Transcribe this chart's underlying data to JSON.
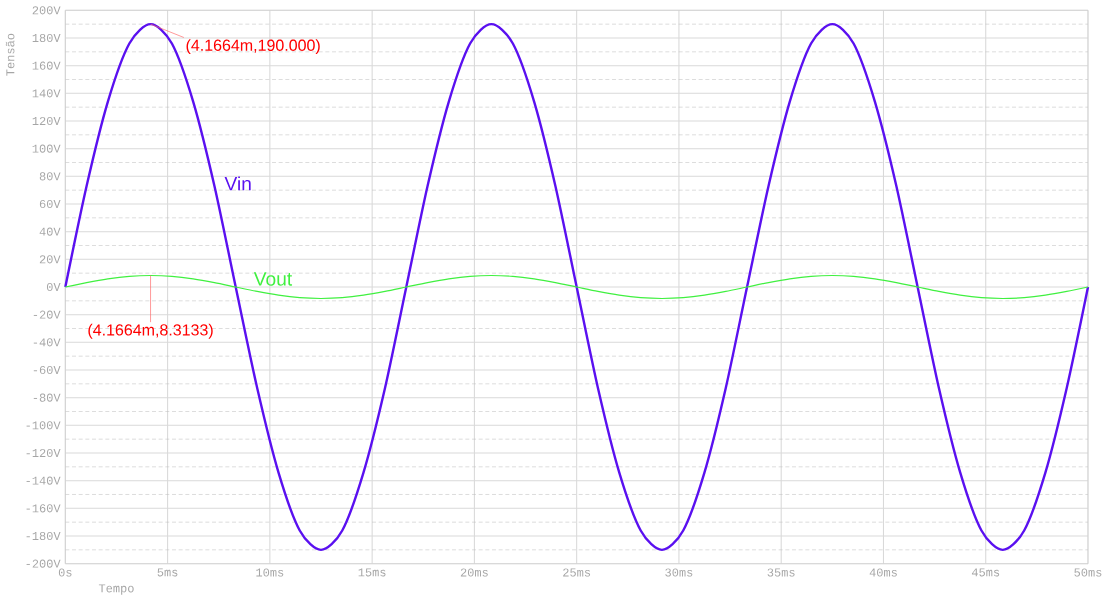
{
  "chart_data": {
    "type": "line",
    "xlabel": "Tempo",
    "ylabel": "Tensão",
    "x": [
      0,
      1.04,
      2.08,
      3.13,
      4.17,
      5.21,
      6.25,
      7.29,
      8.33,
      9.38,
      10.42,
      11.46,
      12.5,
      13.54,
      14.58,
      15.63,
      16.67,
      17.71,
      18.75,
      19.79,
      20.83,
      21.88,
      22.92,
      23.96,
      25,
      26.04,
      27.08,
      28.13,
      29.17,
      30.21,
      31.25,
      32.29,
      33.33,
      34.38,
      35.42,
      36.46,
      37.5,
      38.54,
      39.58,
      40.63,
      41.67,
      42.71,
      43.75,
      44.79,
      45.83,
      46.88,
      47.92,
      48.96,
      50
    ],
    "series": [
      {
        "name": "Vin",
        "color": "#5a10f0",
        "values": [
          0,
          73,
          134,
          176,
          190,
          176,
          134,
          73,
          0,
          -73,
          -134,
          -176,
          -190,
          -176,
          -134,
          -73,
          0,
          73,
          134,
          176,
          190,
          176,
          134,
          73,
          0,
          -73,
          -134,
          -176,
          -190,
          -176,
          -134,
          -73,
          0,
          73,
          134,
          176,
          190,
          176,
          134,
          73,
          0,
          -73,
          -134,
          -176,
          -190,
          -176,
          -134,
          -73,
          0
        ]
      },
      {
        "name": "Vout",
        "color": "#40f040",
        "values": [
          0,
          3.2,
          5.9,
          7.7,
          8.3,
          7.7,
          5.9,
          3.2,
          0,
          -3.2,
          -5.9,
          -7.7,
          -8.3,
          -7.7,
          -5.9,
          -3.2,
          0,
          3.2,
          5.9,
          7.7,
          8.3,
          7.7,
          5.9,
          3.2,
          0,
          -3.2,
          -5.9,
          -7.7,
          -8.3,
          -7.7,
          -5.9,
          -3.2,
          0,
          3.2,
          5.9,
          7.7,
          8.3,
          7.7,
          5.9,
          3.2,
          0,
          -3.2,
          -5.9,
          -7.7,
          -8.3,
          -7.7,
          -5.9,
          -3.2,
          0
        ]
      }
    ],
    "xlim": [
      0,
      50
    ],
    "xticks": [
      {
        "value": 0,
        "label": "0s"
      },
      {
        "value": 5,
        "label": "5ms"
      },
      {
        "value": 10,
        "label": "10ms"
      },
      {
        "value": 15,
        "label": "15ms"
      },
      {
        "value": 20,
        "label": "20ms"
      },
      {
        "value": 25,
        "label": "25ms"
      },
      {
        "value": 30,
        "label": "30ms"
      },
      {
        "value": 35,
        "label": "35ms"
      },
      {
        "value": 40,
        "label": "40ms"
      },
      {
        "value": 45,
        "label": "45ms"
      },
      {
        "value": 50,
        "label": "50ms"
      }
    ],
    "ylim": [
      -200,
      200
    ],
    "yticks": [
      {
        "value": -200,
        "label": "-200V"
      },
      {
        "value": -180,
        "label": "-180V"
      },
      {
        "value": -160,
        "label": "-160V"
      },
      {
        "value": -140,
        "label": "-140V"
      },
      {
        "value": -120,
        "label": "-120V"
      },
      {
        "value": -100,
        "label": "-100V"
      },
      {
        "value": -80,
        "label": "-80V"
      },
      {
        "value": -60,
        "label": "-60V"
      },
      {
        "value": -40,
        "label": "-40V"
      },
      {
        "value": -20,
        "label": "-20V"
      },
      {
        "value": 0,
        "label": "0V"
      },
      {
        "value": 20,
        "label": "20V"
      },
      {
        "value": 40,
        "label": "40V"
      },
      {
        "value": 60,
        "label": "60V"
      },
      {
        "value": 80,
        "label": "80V"
      },
      {
        "value": 100,
        "label": "100V"
      },
      {
        "value": 120,
        "label": "120V"
      },
      {
        "value": 140,
        "label": "140V"
      },
      {
        "value": 160,
        "label": "160V"
      },
      {
        "value": 180,
        "label": "180V"
      },
      {
        "value": 200,
        "label": "200V"
      }
    ],
    "grid": true,
    "marker": "none",
    "line_style": "solid",
    "annotations": [
      {
        "text": "(4.1664m,190.000)",
        "x": 4.1664,
        "y": 190
      },
      {
        "text": "(4.1664m,8.3133)",
        "x": 4.1664,
        "y": 8.3133
      }
    ]
  }
}
